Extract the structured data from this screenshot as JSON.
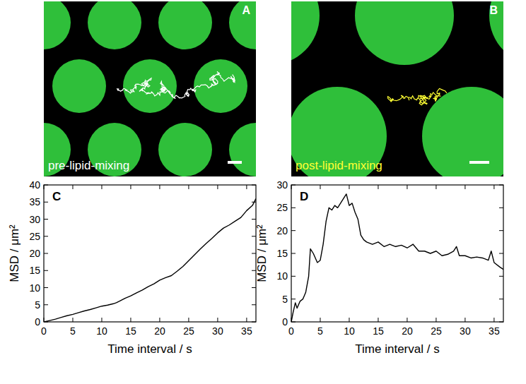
{
  "images": [
    {
      "label": "A",
      "caption": "pre-lipid-mixing",
      "color": "#ffffff"
    },
    {
      "label": "B",
      "caption": "post-lipid-mixing",
      "color": "#ffff33"
    }
  ],
  "chart_data": [
    {
      "type": "line",
      "title": "C",
      "x_label": "Time interval / s",
      "y_label": "MSD / μm²",
      "xlim": [
        0,
        36.6
      ],
      "ylim": [
        0,
        40
      ],
      "xticks": [
        0,
        5,
        10,
        15,
        20,
        25,
        30,
        35
      ],
      "yticks": [
        0,
        5,
        10,
        15,
        20,
        25,
        30,
        35,
        40
      ],
      "series": [
        {
          "color": "#000000",
          "x": [
            0,
            1,
            2,
            3,
            4,
            5,
            6,
            7,
            8,
            9,
            10,
            11,
            12,
            12.5,
            13,
            14,
            15,
            16,
            17,
            18,
            19,
            20,
            21,
            22,
            23,
            24,
            25,
            26,
            27,
            28,
            29,
            30,
            31,
            32,
            33,
            34,
            35,
            36,
            36.6
          ],
          "values": [
            0,
            0.4,
            0.8,
            1.3,
            1.8,
            2.2,
            2.7,
            3.2,
            3.6,
            4.1,
            4.6,
            4.9,
            5.3,
            5.6,
            6.0,
            6.9,
            7.6,
            8.5,
            9.3,
            10.3,
            11.1,
            12.2,
            12.9,
            13.5,
            14.8,
            16.2,
            17.9,
            19.6,
            21.3,
            22.9,
            24.4,
            26.0,
            27.4,
            28.3,
            29.4,
            30.5,
            32.5,
            34.0,
            36.0
          ]
        }
      ]
    },
    {
      "type": "line",
      "title": "D",
      "x_label": "Time interval / s",
      "y_label": "MSD / μm²",
      "xlim": [
        0,
        36.6
      ],
      "ylim": [
        0,
        30
      ],
      "xticks": [
        0,
        5,
        10,
        15,
        20,
        25,
        30,
        35
      ],
      "yticks": [
        0,
        5,
        10,
        15,
        20,
        25,
        30
      ],
      "series": [
        {
          "color": "#000000",
          "x": [
            0,
            0.3,
            0.7,
            1,
            1.5,
            2,
            2.5,
            3,
            3.3,
            3.8,
            4.5,
            5,
            5.5,
            6,
            6.5,
            7,
            7.5,
            8,
            8.5,
            9,
            9.5,
            10,
            10.5,
            11,
            11.5,
            12,
            12.5,
            13,
            14,
            15,
            16,
            17,
            18,
            19,
            20,
            21,
            22,
            23,
            24,
            25,
            26,
            27,
            28,
            28.5,
            29,
            30,
            31,
            32,
            33,
            34,
            34.5,
            35,
            36,
            36.6
          ],
          "values": [
            0,
            2,
            4.2,
            3,
            4.5,
            5,
            6.5,
            10,
            16,
            15,
            13,
            13.5,
            17,
            22,
            25,
            24.5,
            25.5,
            25,
            26,
            27,
            28,
            25.5,
            26,
            24,
            22.5,
            19,
            18,
            17.5,
            17,
            17.5,
            16.5,
            17,
            16.5,
            16.8,
            16.2,
            17,
            15.5,
            15.5,
            15,
            15.5,
            14.5,
            14.8,
            15.5,
            16.5,
            14.5,
            14.5,
            14,
            14.2,
            14,
            13.5,
            15.5,
            13,
            12,
            11.5
          ]
        }
      ]
    }
  ]
}
